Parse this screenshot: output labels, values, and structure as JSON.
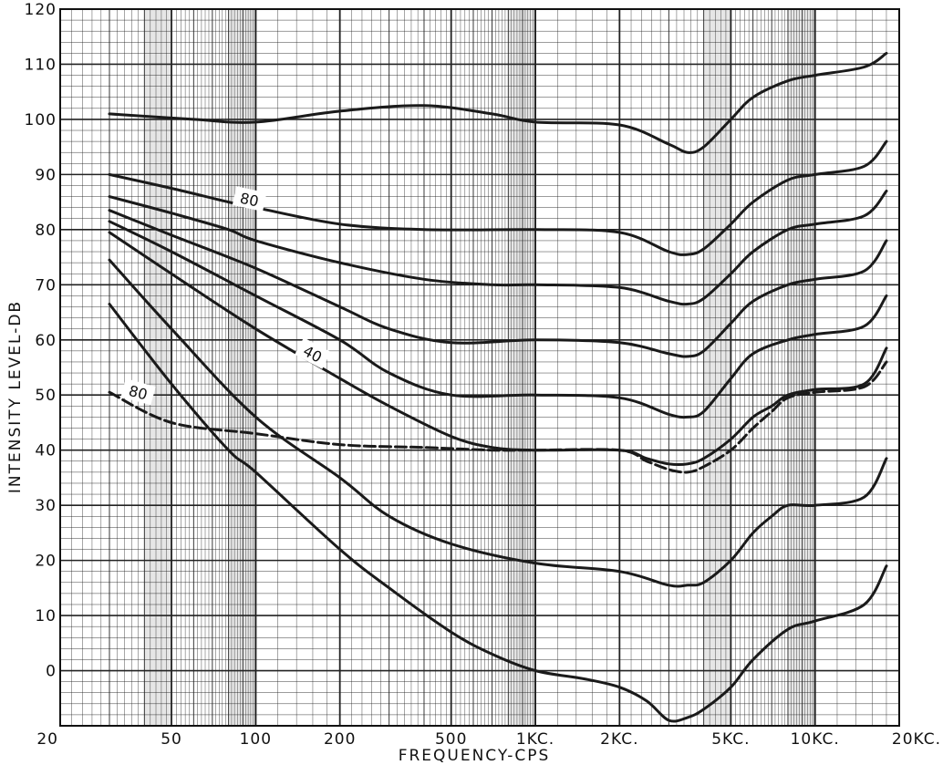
{
  "chart_data": {
    "type": "line",
    "title": "",
    "xlabel": "FREQUENCY-CPS",
    "ylabel": "INTENSITY LEVEL-DB",
    "x_scale": "log",
    "xlim": [
      20,
      20000
    ],
    "ylim": [
      -10,
      120
    ],
    "grid": true,
    "x_tick_labels": [
      {
        "value": 20,
        "label": "20"
      },
      {
        "value": 50,
        "label": "50"
      },
      {
        "value": 100,
        "label": "100"
      },
      {
        "value": 200,
        "label": "200"
      },
      {
        "value": 500,
        "label": "500"
      },
      {
        "value": 1000,
        "label": "1KC."
      },
      {
        "value": 2000,
        "label": "2KC."
      },
      {
        "value": 5000,
        "label": "5KC."
      },
      {
        "value": 10000,
        "label": "10KC."
      },
      {
        "value": 20000,
        "label": "20KC."
      }
    ],
    "y_tick_labels": [
      {
        "value": 0,
        "label": "0"
      },
      {
        "value": 10,
        "label": "10"
      },
      {
        "value": 20,
        "label": "20"
      },
      {
        "value": 30,
        "label": "30"
      },
      {
        "value": 40,
        "label": "40"
      },
      {
        "value": 50,
        "label": "50"
      },
      {
        "value": 60,
        "label": "60"
      },
      {
        "value": 70,
        "label": "70"
      },
      {
        "value": 80,
        "label": "80"
      },
      {
        "value": 90,
        "label": "90"
      },
      {
        "value": 100,
        "label": "100"
      },
      {
        "value": 110,
        "label": "110"
      },
      {
        "value": 120,
        "label": "120"
      }
    ],
    "series": [
      {
        "style": "solid",
        "points": [
          [
            30,
            101
          ],
          [
            60,
            100
          ],
          [
            100,
            99.5
          ],
          [
            200,
            101.5
          ],
          [
            400,
            102.5
          ],
          [
            700,
            101
          ],
          [
            1000,
            99.5
          ],
          [
            2000,
            99
          ],
          [
            3000,
            95.5
          ],
          [
            3500,
            94
          ],
          [
            4000,
            95
          ],
          [
            5000,
            100
          ],
          [
            6000,
            104
          ],
          [
            8000,
            107
          ],
          [
            10000,
            108
          ],
          [
            15000,
            109.5
          ],
          [
            18000,
            112
          ]
        ]
      },
      {
        "style": "solid",
        "points": [
          [
            30,
            90
          ],
          [
            50,
            87.5
          ],
          [
            80,
            85
          ],
          [
            100,
            84
          ],
          [
            200,
            81
          ],
          [
            400,
            80
          ],
          [
            1000,
            80
          ],
          [
            2000,
            79.5
          ],
          [
            3000,
            76
          ],
          [
            3500,
            75.5
          ],
          [
            4000,
            76.5
          ],
          [
            5000,
            81
          ],
          [
            6000,
            85
          ],
          [
            8000,
            89
          ],
          [
            10000,
            90
          ],
          [
            15000,
            91.5
          ],
          [
            18000,
            96
          ]
        ]
      },
      {
        "style": "solid",
        "points": [
          [
            30,
            86
          ],
          [
            50,
            83
          ],
          [
            80,
            80
          ],
          [
            100,
            78
          ],
          [
            200,
            74
          ],
          [
            400,
            71
          ],
          [
            700,
            70
          ],
          [
            1000,
            70
          ],
          [
            2000,
            69.5
          ],
          [
            3000,
            67
          ],
          [
            3500,
            66.5
          ],
          [
            4000,
            67.5
          ],
          [
            5000,
            72
          ],
          [
            6000,
            76
          ],
          [
            8000,
            80
          ],
          [
            10000,
            81
          ],
          [
            15000,
            82.5
          ],
          [
            18000,
            87
          ]
        ]
      },
      {
        "style": "solid",
        "points": [
          [
            30,
            83.5
          ],
          [
            50,
            79
          ],
          [
            100,
            73
          ],
          [
            200,
            66
          ],
          [
            300,
            62
          ],
          [
            500,
            59.5
          ],
          [
            1000,
            60
          ],
          [
            2000,
            59.5
          ],
          [
            3000,
            57.5
          ],
          [
            3500,
            57
          ],
          [
            4000,
            58
          ],
          [
            5000,
            63
          ],
          [
            6000,
            67
          ],
          [
            8000,
            70
          ],
          [
            10000,
            71
          ],
          [
            15000,
            72.5
          ],
          [
            18000,
            78
          ]
        ]
      },
      {
        "style": "solid",
        "points": [
          [
            30,
            81.5
          ],
          [
            50,
            76
          ],
          [
            100,
            68
          ],
          [
            200,
            60
          ],
          [
            300,
            54
          ],
          [
            500,
            50
          ],
          [
            1000,
            50
          ],
          [
            2000,
            49.5
          ],
          [
            3000,
            46.5
          ],
          [
            3500,
            46
          ],
          [
            4000,
            47
          ],
          [
            5000,
            53
          ],
          [
            6000,
            57.5
          ],
          [
            8000,
            60
          ],
          [
            10000,
            61
          ],
          [
            15000,
            62.5
          ],
          [
            18000,
            68
          ]
        ]
      },
      {
        "style": "solid",
        "points": [
          [
            30,
            79.5
          ],
          [
            50,
            72
          ],
          [
            100,
            62
          ],
          [
            200,
            53
          ],
          [
            300,
            48
          ],
          [
            500,
            42.5
          ],
          [
            700,
            40.5
          ],
          [
            1000,
            40
          ],
          [
            2000,
            40
          ],
          [
            2500,
            38.5
          ],
          [
            3000,
            37.5
          ],
          [
            3500,
            37.5
          ],
          [
            4000,
            38.5
          ],
          [
            5000,
            42
          ],
          [
            6000,
            46
          ],
          [
            7000,
            48
          ],
          [
            8000,
            50
          ],
          [
            10000,
            51
          ],
          [
            15000,
            52
          ],
          [
            18000,
            58.5
          ]
        ]
      },
      {
        "style": "solid",
        "points": [
          [
            30,
            74.5
          ],
          [
            50,
            62
          ],
          [
            100,
            46
          ],
          [
            200,
            35
          ],
          [
            300,
            28
          ],
          [
            500,
            23
          ],
          [
            1000,
            19.5
          ],
          [
            2000,
            18
          ],
          [
            3000,
            15.5
          ],
          [
            3500,
            15.5
          ],
          [
            4000,
            16
          ],
          [
            5000,
            20
          ],
          [
            6000,
            25
          ],
          [
            7000,
            28
          ],
          [
            8000,
            30
          ],
          [
            10000,
            30
          ],
          [
            15000,
            31.5
          ],
          [
            18000,
            38.5
          ]
        ]
      },
      {
        "style": "solid",
        "points": [
          [
            30,
            66.5
          ],
          [
            50,
            52
          ],
          [
            80,
            40
          ],
          [
            100,
            36
          ],
          [
            200,
            22
          ],
          [
            300,
            15
          ],
          [
            500,
            7
          ],
          [
            700,
            3
          ],
          [
            1000,
            0
          ],
          [
            1500,
            -1.5
          ],
          [
            2000,
            -3
          ],
          [
            2500,
            -5.5
          ],
          [
            3000,
            -9
          ],
          [
            3500,
            -8.5
          ],
          [
            4000,
            -7
          ],
          [
            5000,
            -3
          ],
          [
            6000,
            2
          ],
          [
            8000,
            7.5
          ],
          [
            10000,
            9
          ],
          [
            15000,
            12
          ],
          [
            18000,
            19
          ]
        ]
      },
      {
        "style": "dashed",
        "points": [
          [
            30,
            50.5
          ],
          [
            50,
            45
          ],
          [
            100,
            43
          ],
          [
            200,
            41
          ],
          [
            400,
            40.5
          ],
          [
            700,
            40
          ],
          [
            1000,
            40
          ],
          [
            2000,
            40
          ],
          [
            2500,
            38
          ],
          [
            3000,
            36.5
          ],
          [
            3500,
            36
          ],
          [
            4000,
            37
          ],
          [
            5000,
            40
          ],
          [
            6000,
            44
          ],
          [
            7000,
            47
          ],
          [
            8000,
            49.5
          ],
          [
            10000,
            50.5
          ],
          [
            15000,
            51.5
          ],
          [
            18000,
            56
          ]
        ]
      }
    ],
    "curve_labels": [
      {
        "text": "80",
        "x": 95,
        "y": 85.5,
        "rotate": 12
      },
      {
        "text": "40",
        "x": 160,
        "y": 57.5,
        "rotate": 28
      },
      {
        "text": "80",
        "x": 38,
        "y": 50.5,
        "rotate": 15
      }
    ]
  }
}
